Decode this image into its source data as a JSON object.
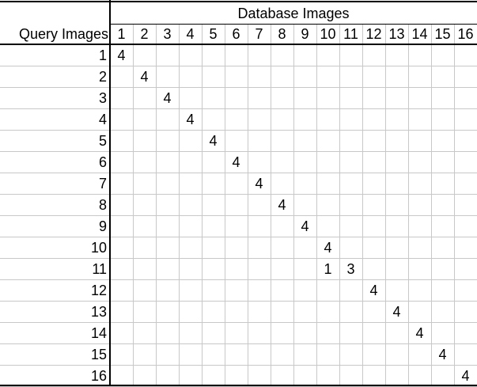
{
  "table": {
    "column_group_header": "Database Images",
    "row_group_header": "Query Images",
    "columns": [
      "1",
      "2",
      "3",
      "4",
      "5",
      "6",
      "7",
      "8",
      "9",
      "10",
      "11",
      "12",
      "13",
      "14",
      "15",
      "16"
    ],
    "rows": [
      "1",
      "2",
      "3",
      "4",
      "5",
      "6",
      "7",
      "8",
      "9",
      "10",
      "11",
      "12",
      "13",
      "14",
      "15",
      "16"
    ],
    "cells": [
      {
        "row": 1,
        "col": 1,
        "value": "4"
      },
      {
        "row": 2,
        "col": 2,
        "value": "4"
      },
      {
        "row": 3,
        "col": 3,
        "value": "4"
      },
      {
        "row": 4,
        "col": 4,
        "value": "4"
      },
      {
        "row": 5,
        "col": 5,
        "value": "4"
      },
      {
        "row": 6,
        "col": 6,
        "value": "4"
      },
      {
        "row": 7,
        "col": 7,
        "value": "4"
      },
      {
        "row": 8,
        "col": 8,
        "value": "4"
      },
      {
        "row": 9,
        "col": 9,
        "value": "4"
      },
      {
        "row": 10,
        "col": 10,
        "value": "4"
      },
      {
        "row": 11,
        "col": 10,
        "value": "1"
      },
      {
        "row": 11,
        "col": 11,
        "value": "3"
      },
      {
        "row": 12,
        "col": 12,
        "value": "4"
      },
      {
        "row": 13,
        "col": 13,
        "value": "4"
      },
      {
        "row": 14,
        "col": 14,
        "value": "4"
      },
      {
        "row": 15,
        "col": 15,
        "value": "4"
      },
      {
        "row": 16,
        "col": 16,
        "value": "4"
      }
    ]
  }
}
